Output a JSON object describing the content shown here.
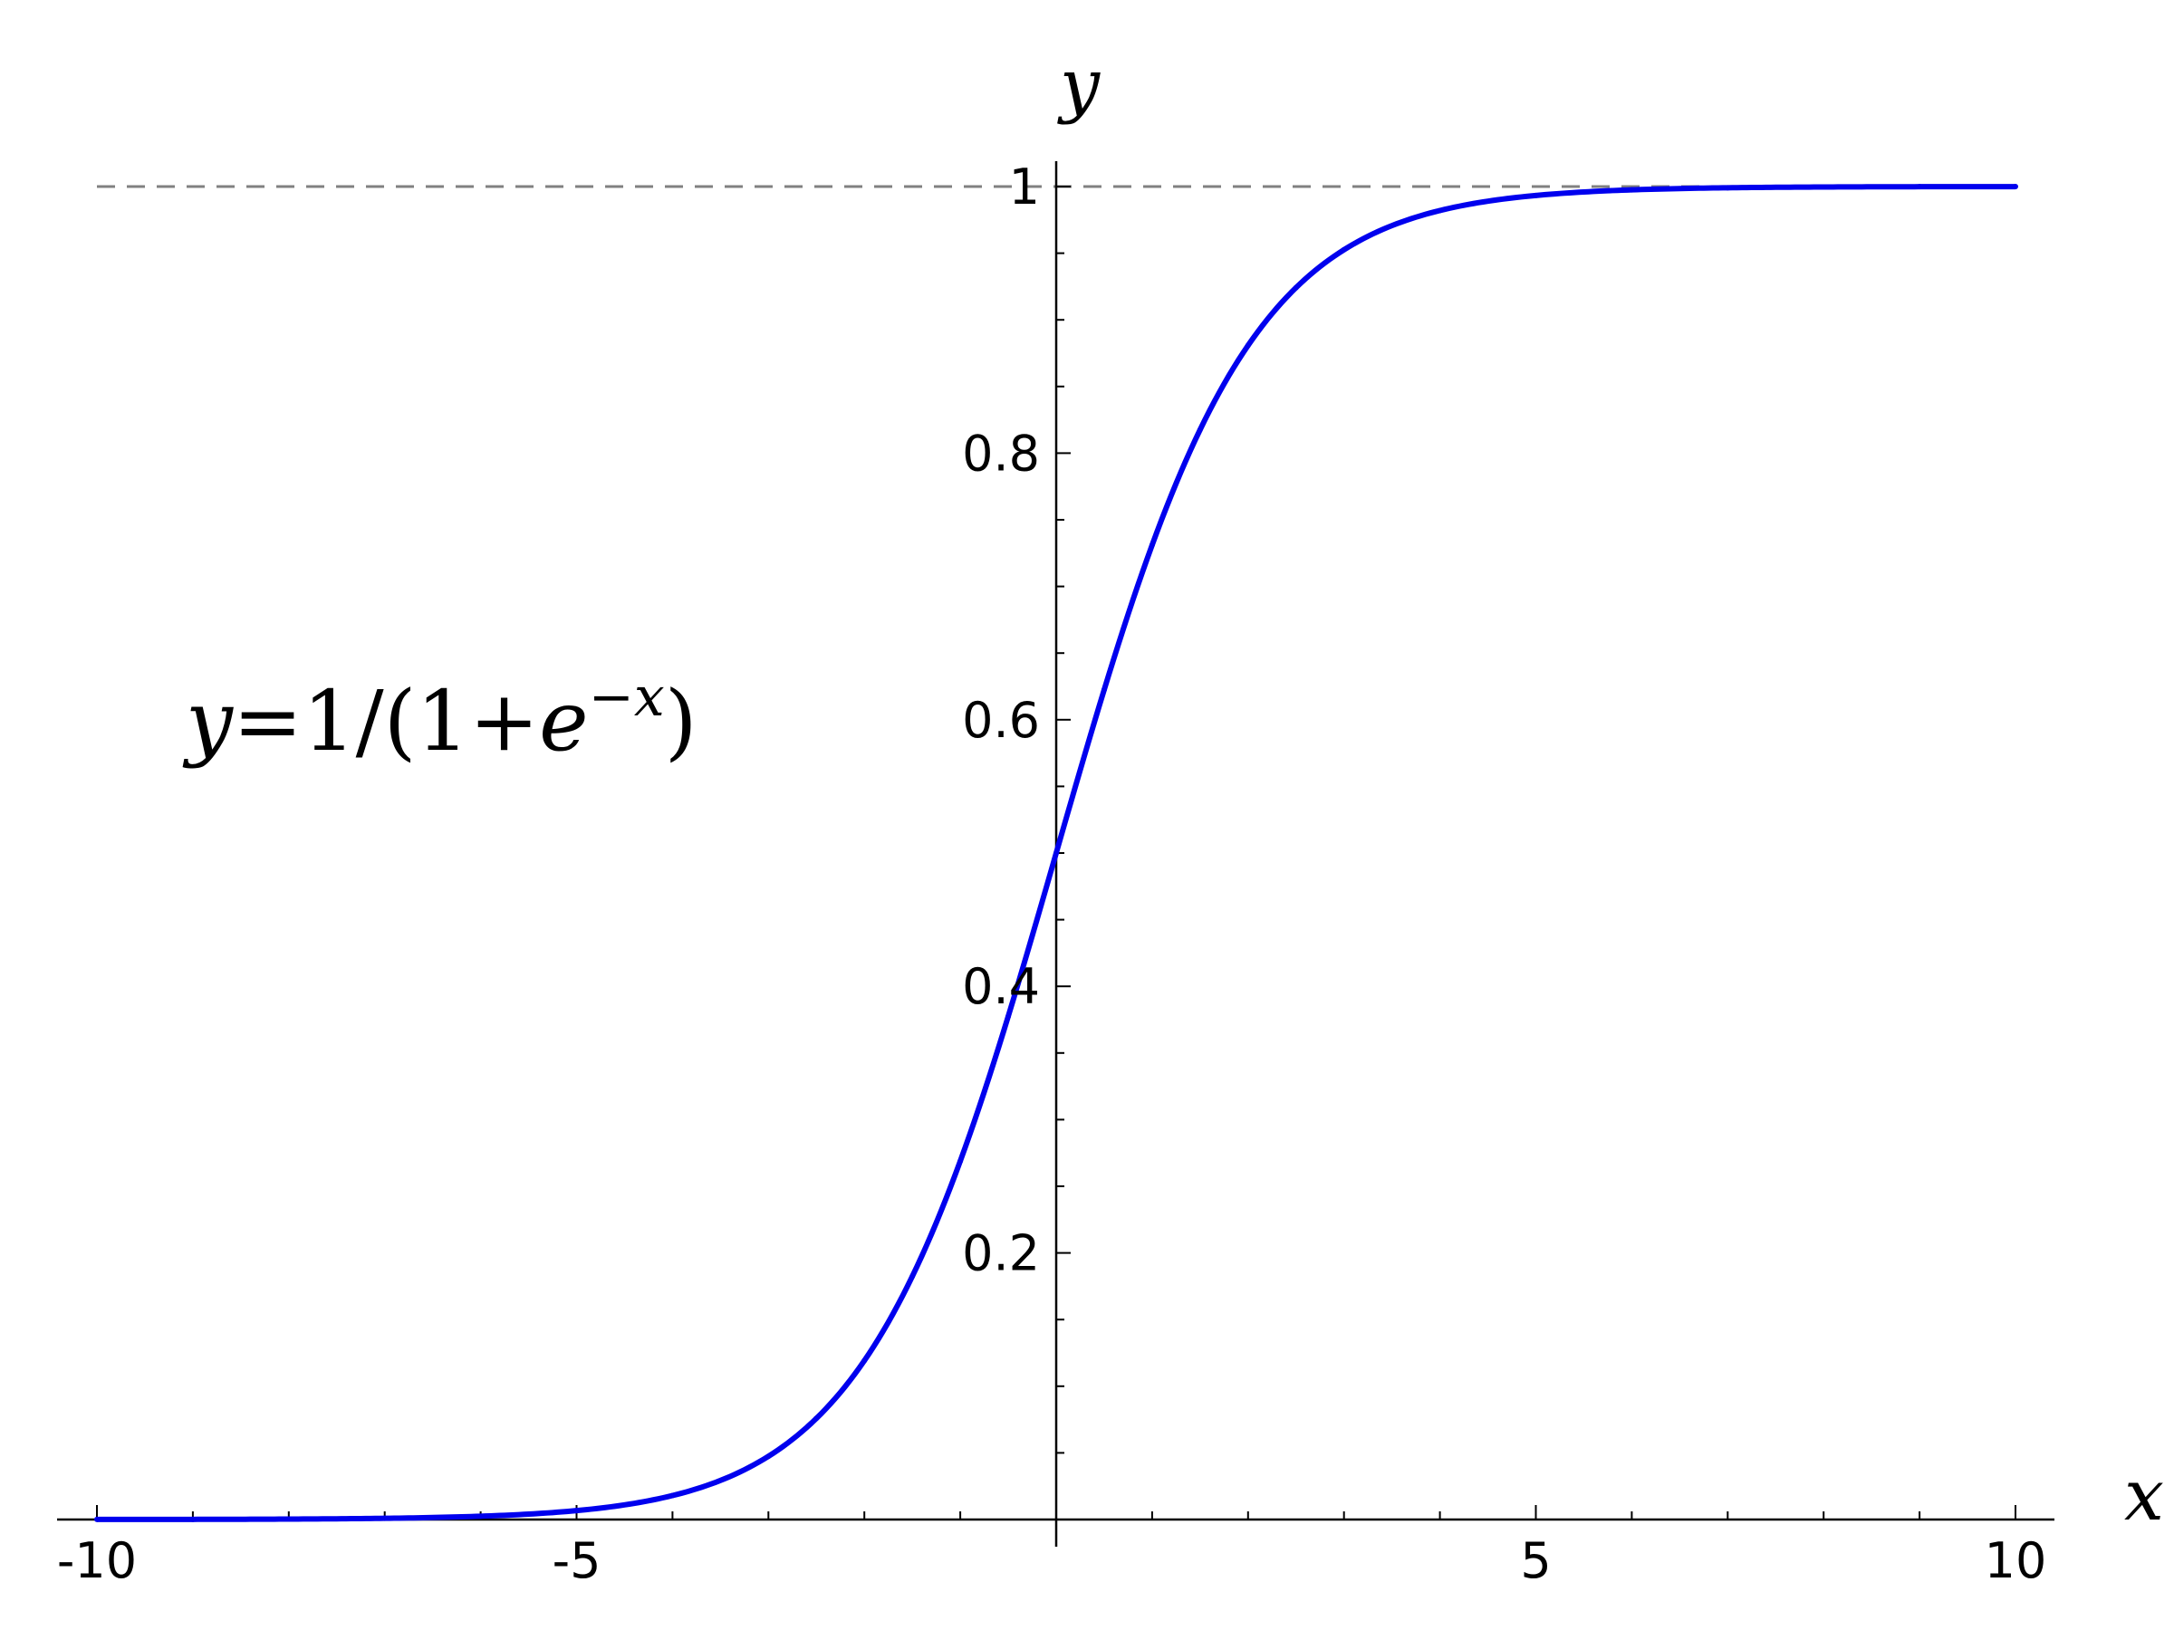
{
  "chart_data": {
    "type": "line",
    "function": "1/(1+exp(-x))",
    "xlim": [
      -10,
      10
    ],
    "ylim": [
      0,
      1
    ],
    "xlabel": "x",
    "ylabel": "y",
    "x_ticks": [
      {
        "value": -10,
        "label": "-10"
      },
      {
        "value": -5,
        "label": "-5"
      },
      {
        "value": 5,
        "label": "5"
      },
      {
        "value": 10,
        "label": "10"
      }
    ],
    "y_ticks": [
      {
        "value": 0.2,
        "label": "0.2"
      },
      {
        "value": 0.4,
        "label": "0.4"
      },
      {
        "value": 0.6,
        "label": "0.6"
      },
      {
        "value": 0.8,
        "label": "0.8"
      },
      {
        "value": 1,
        "label": "1"
      }
    ],
    "asymptote": {
      "y": 1,
      "style": "dashed"
    },
    "annotation": {
      "y": "y",
      "eq": "=",
      "one": "1/(1+",
      "e": "e",
      "sup": "−x",
      "close": ")"
    },
    "series": [
      {
        "color": "#0000ee",
        "x": [
          -10,
          -9,
          -8,
          -7,
          -6,
          -5,
          -4,
          -3,
          -2.5,
          -2,
          -1.5,
          -1,
          -0.5,
          0,
          0.5,
          1,
          1.5,
          2,
          2.5,
          3,
          4,
          5,
          6,
          7,
          8,
          9,
          10
        ],
        "y": [
          4.54e-05,
          0.000123,
          0.000335,
          0.000911,
          0.00247,
          0.00669,
          0.018,
          0.0474,
          0.0759,
          0.1192,
          0.1824,
          0.2689,
          0.3775,
          0.5,
          0.6225,
          0.7311,
          0.8176,
          0.8808,
          0.9241,
          0.9526,
          0.982,
          0.9933,
          0.9975,
          0.9991,
          0.9997,
          0.9999,
          1.0
        ]
      }
    ],
    "colors": {
      "curve": "#0000ee",
      "axis": "#000000",
      "asymptote": "#808080"
    }
  }
}
